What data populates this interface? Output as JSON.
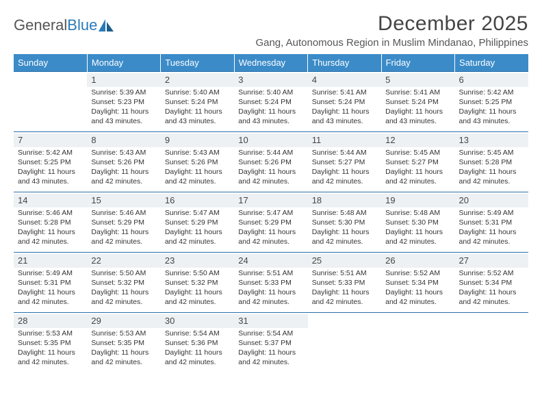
{
  "brand": {
    "name_part1": "General",
    "name_part2": "Blue"
  },
  "title": "December 2025",
  "location": "Gang, Autonomous Region in Muslim Mindanao, Philippines",
  "colors": {
    "header_bg": "#3b8bc8",
    "header_text": "#ffffff",
    "row_divider": "#2a6ea8",
    "daynum_bg": "#eef1f3",
    "logo_blue": "#2a7ab8",
    "text": "#333333",
    "muted": "#555555"
  },
  "days_of_week": [
    "Sunday",
    "Monday",
    "Tuesday",
    "Wednesday",
    "Thursday",
    "Friday",
    "Saturday"
  ],
  "weeks": [
    [
      null,
      {
        "n": "1",
        "sunrise": "5:39 AM",
        "sunset": "5:23 PM",
        "daylight": "11 hours and 43 minutes."
      },
      {
        "n": "2",
        "sunrise": "5:40 AM",
        "sunset": "5:24 PM",
        "daylight": "11 hours and 43 minutes."
      },
      {
        "n": "3",
        "sunrise": "5:40 AM",
        "sunset": "5:24 PM",
        "daylight": "11 hours and 43 minutes."
      },
      {
        "n": "4",
        "sunrise": "5:41 AM",
        "sunset": "5:24 PM",
        "daylight": "11 hours and 43 minutes."
      },
      {
        "n": "5",
        "sunrise": "5:41 AM",
        "sunset": "5:24 PM",
        "daylight": "11 hours and 43 minutes."
      },
      {
        "n": "6",
        "sunrise": "5:42 AM",
        "sunset": "5:25 PM",
        "daylight": "11 hours and 43 minutes."
      }
    ],
    [
      {
        "n": "7",
        "sunrise": "5:42 AM",
        "sunset": "5:25 PM",
        "daylight": "11 hours and 43 minutes."
      },
      {
        "n": "8",
        "sunrise": "5:43 AM",
        "sunset": "5:26 PM",
        "daylight": "11 hours and 42 minutes."
      },
      {
        "n": "9",
        "sunrise": "5:43 AM",
        "sunset": "5:26 PM",
        "daylight": "11 hours and 42 minutes."
      },
      {
        "n": "10",
        "sunrise": "5:44 AM",
        "sunset": "5:26 PM",
        "daylight": "11 hours and 42 minutes."
      },
      {
        "n": "11",
        "sunrise": "5:44 AM",
        "sunset": "5:27 PM",
        "daylight": "11 hours and 42 minutes."
      },
      {
        "n": "12",
        "sunrise": "5:45 AM",
        "sunset": "5:27 PM",
        "daylight": "11 hours and 42 minutes."
      },
      {
        "n": "13",
        "sunrise": "5:45 AM",
        "sunset": "5:28 PM",
        "daylight": "11 hours and 42 minutes."
      }
    ],
    [
      {
        "n": "14",
        "sunrise": "5:46 AM",
        "sunset": "5:28 PM",
        "daylight": "11 hours and 42 minutes."
      },
      {
        "n": "15",
        "sunrise": "5:46 AM",
        "sunset": "5:29 PM",
        "daylight": "11 hours and 42 minutes."
      },
      {
        "n": "16",
        "sunrise": "5:47 AM",
        "sunset": "5:29 PM",
        "daylight": "11 hours and 42 minutes."
      },
      {
        "n": "17",
        "sunrise": "5:47 AM",
        "sunset": "5:29 PM",
        "daylight": "11 hours and 42 minutes."
      },
      {
        "n": "18",
        "sunrise": "5:48 AM",
        "sunset": "5:30 PM",
        "daylight": "11 hours and 42 minutes."
      },
      {
        "n": "19",
        "sunrise": "5:48 AM",
        "sunset": "5:30 PM",
        "daylight": "11 hours and 42 minutes."
      },
      {
        "n": "20",
        "sunrise": "5:49 AM",
        "sunset": "5:31 PM",
        "daylight": "11 hours and 42 minutes."
      }
    ],
    [
      {
        "n": "21",
        "sunrise": "5:49 AM",
        "sunset": "5:31 PM",
        "daylight": "11 hours and 42 minutes."
      },
      {
        "n": "22",
        "sunrise": "5:50 AM",
        "sunset": "5:32 PM",
        "daylight": "11 hours and 42 minutes."
      },
      {
        "n": "23",
        "sunrise": "5:50 AM",
        "sunset": "5:32 PM",
        "daylight": "11 hours and 42 minutes."
      },
      {
        "n": "24",
        "sunrise": "5:51 AM",
        "sunset": "5:33 PM",
        "daylight": "11 hours and 42 minutes."
      },
      {
        "n": "25",
        "sunrise": "5:51 AM",
        "sunset": "5:33 PM",
        "daylight": "11 hours and 42 minutes."
      },
      {
        "n": "26",
        "sunrise": "5:52 AM",
        "sunset": "5:34 PM",
        "daylight": "11 hours and 42 minutes."
      },
      {
        "n": "27",
        "sunrise": "5:52 AM",
        "sunset": "5:34 PM",
        "daylight": "11 hours and 42 minutes."
      }
    ],
    [
      {
        "n": "28",
        "sunrise": "5:53 AM",
        "sunset": "5:35 PM",
        "daylight": "11 hours and 42 minutes."
      },
      {
        "n": "29",
        "sunrise": "5:53 AM",
        "sunset": "5:35 PM",
        "daylight": "11 hours and 42 minutes."
      },
      {
        "n": "30",
        "sunrise": "5:54 AM",
        "sunset": "5:36 PM",
        "daylight": "11 hours and 42 minutes."
      },
      {
        "n": "31",
        "sunrise": "5:54 AM",
        "sunset": "5:37 PM",
        "daylight": "11 hours and 42 minutes."
      },
      null,
      null,
      null
    ]
  ],
  "labels": {
    "sunrise": "Sunrise:",
    "sunset": "Sunset:",
    "daylight": "Daylight:"
  }
}
